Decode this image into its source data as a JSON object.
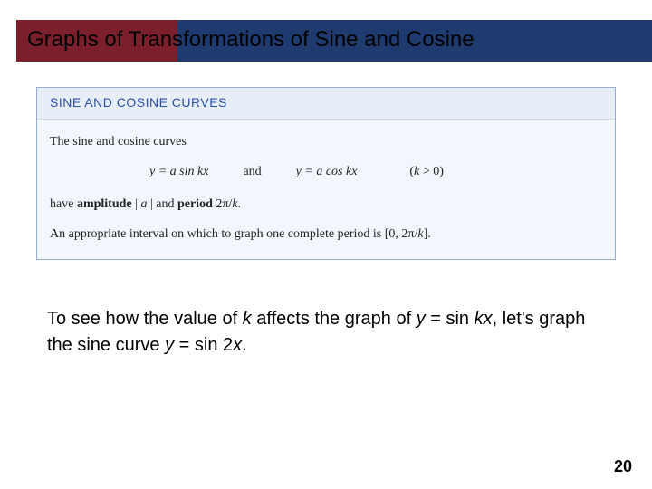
{
  "header": {
    "title": "Graphs of Transformations of Sine and Cosine",
    "maroon_color": "#7a1f2b",
    "navy_color": "#1f3a6e"
  },
  "infobox": {
    "heading": "SINE AND COSINE CURVES",
    "line1": "The sine and cosine curves",
    "formula_sin": "y = a sin kx",
    "connector": "and",
    "formula_cos": "y = a cos kx",
    "condition": "(k > 0)",
    "line3_pre": "have ",
    "amplitude_label": "amplitude",
    "amplitude_expr": " | a | ",
    "line3_mid": " and ",
    "period_label": "period",
    "period_expr": " 2π/k.",
    "line4": "An appropriate interval on which to graph one complete period is [0, 2π/k].",
    "heading_color": "#2a4fa0",
    "box_bg": "#f3f6fc",
    "box_border": "#9aaed0"
  },
  "body_text": {
    "part1": "To see how the value of ",
    "k1": "k",
    "part2": " affects the graph of ",
    "eq1": "y = ",
    "sin1": "sin ",
    "kx": "kx",
    "part3": ", let's graph the sine curve ",
    "eq2": "y = ",
    "sin2": "sin ",
    "twox": "2x",
    "part4": "."
  },
  "page_number": "20"
}
